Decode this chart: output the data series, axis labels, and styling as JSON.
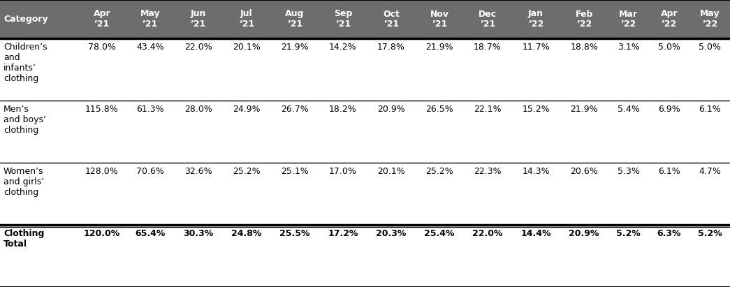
{
  "header_bg_color": "#6d6d6d",
  "header_text_color": "#ffffff",
  "body_bg_color": "#ffffff",
  "body_text_color": "#000000",
  "border_color": "#000000",
  "columns": [
    "Category",
    "Apr\n’21",
    "May\n’21",
    "Jun\n’21",
    "Jul\n’21",
    "Aug\n’21",
    "Sep\n’21",
    "Oct\n’21",
    "Nov\n’21",
    "Dec\n’21",
    "Jan\n’22",
    "Feb\n’22",
    "Mar\n’22",
    "Apr\n’22",
    "May\n’22"
  ],
  "rows": [
    {
      "category": "Children’s\nand\ninfants’\nclothing",
      "values": [
        "78.0%",
        "43.4%",
        "22.0%",
        "20.1%",
        "21.9%",
        "14.2%",
        "17.8%",
        "21.9%",
        "18.7%",
        "11.7%",
        "18.8%",
        "3.1%",
        "5.0%",
        "5.0%"
      ],
      "bold": false
    },
    {
      "category": "Men’s\nand boys’\nclothing",
      "values": [
        "115.8%",
        "61.3%",
        "28.0%",
        "24.9%",
        "26.7%",
        "18.2%",
        "20.9%",
        "26.5%",
        "22.1%",
        "15.2%",
        "21.9%",
        "5.4%",
        "6.9%",
        "6.1%"
      ],
      "bold": false
    },
    {
      "category": "Women’s\nand girls’\nclothing",
      "values": [
        "128.0%",
        "70.6%",
        "32.6%",
        "25.2%",
        "25.1%",
        "17.0%",
        "20.1%",
        "25.2%",
        "22.3%",
        "14.3%",
        "20.6%",
        "5.3%",
        "6.1%",
        "4.7%"
      ],
      "bold": false
    },
    {
      "category": "Clothing\nTotal",
      "values": [
        "120.0%",
        "65.4%",
        "30.3%",
        "24.8%",
        "25.5%",
        "17.2%",
        "20.3%",
        "25.4%",
        "22.0%",
        "14.4%",
        "20.9%",
        "5.2%",
        "6.3%",
        "5.2%"
      ],
      "bold": true
    }
  ],
  "header_fontsize": 9.0,
  "body_fontsize": 9.0,
  "fig_width": 10.45,
  "fig_height": 4.11,
  "dpi": 100
}
